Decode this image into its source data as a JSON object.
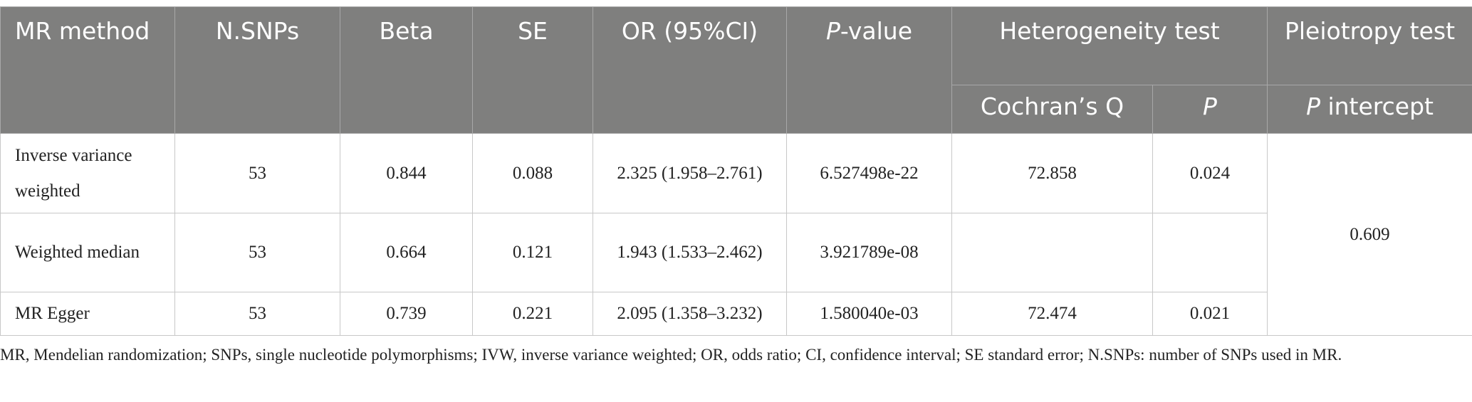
{
  "table": {
    "header": {
      "mr_method": "MR method",
      "n_snps": "N.SNPs",
      "beta": "Beta",
      "se": "SE",
      "or_ci": "OR (95%CI)",
      "p_value": [
        "P",
        "-value"
      ],
      "heterogeneity": "Heterogeneity test",
      "pleiotropy": "Pleiotropy test",
      "cochran_q": "Cochran’s Q",
      "p": "P",
      "p_intercept": [
        "P",
        " intercept"
      ]
    },
    "rows": [
      [
        "Inverse variance weighted",
        53,
        0.844,
        0.088,
        "2.325 (1.958–2.761)",
        "6.527498e-22",
        72.858,
        0.024
      ],
      [
        "Weighted median",
        53,
        0.664,
        0.121,
        "1.943 (1.533–2.462)",
        "3.921789e-08",
        null,
        null
      ],
      [
        "MR Egger",
        53,
        0.739,
        0.221,
        "2.095 (1.358–3.232)",
        "1.580040e-03",
        72.474,
        0.021
      ]
    ],
    "pleiotropy_value": 0.609
  },
  "footnote": "MR, Mendelian randomization; SNPs, single nucleotide polymorphisms; IVW, inverse variance weighted; OR, odds ratio; CI, confidence interval; SE standard error; N.SNPs: number of SNPs used in MR."
}
